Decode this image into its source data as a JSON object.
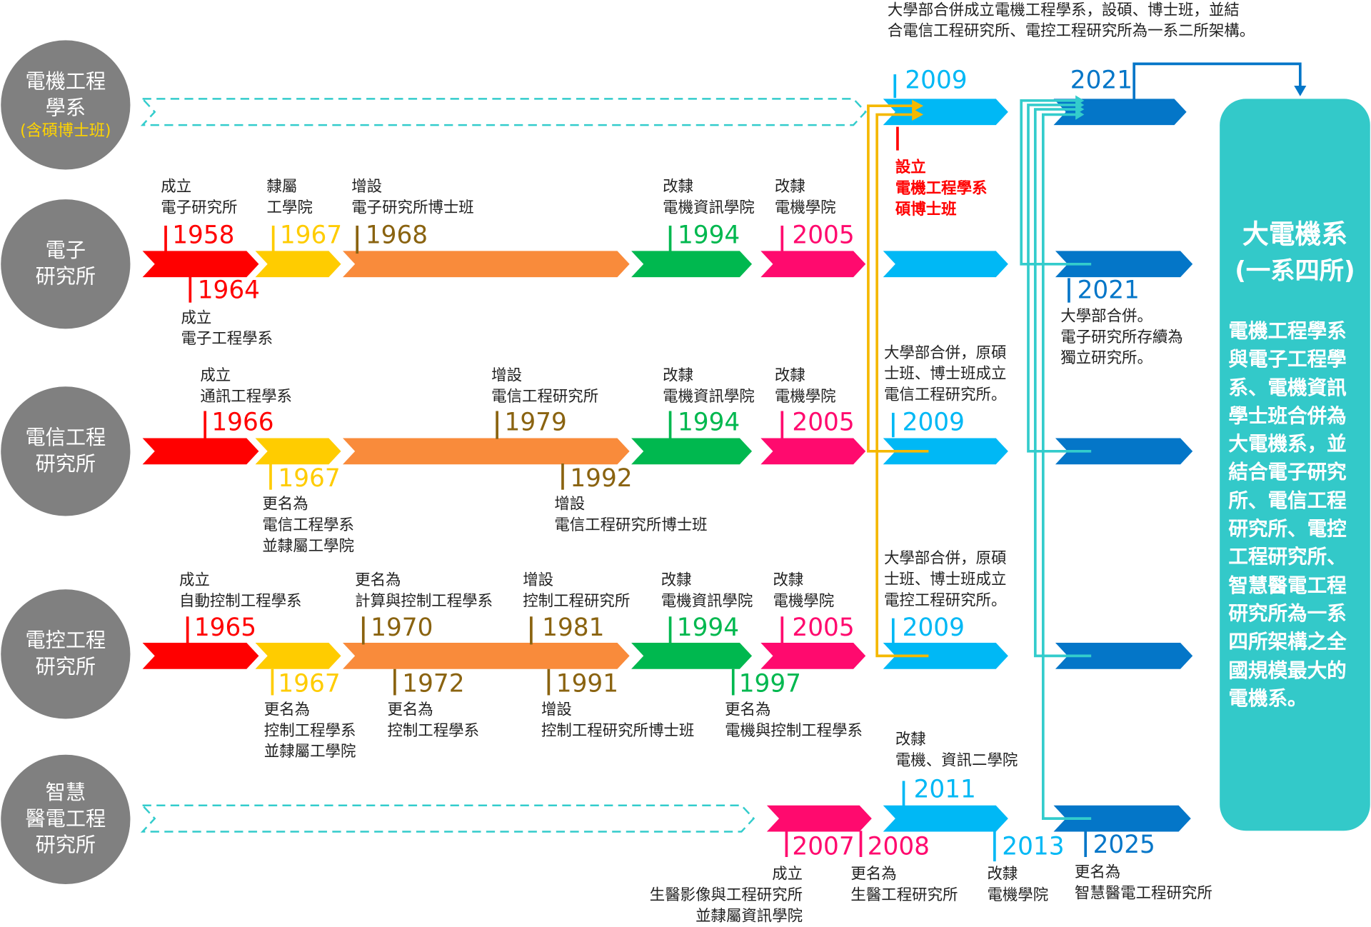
{
  "colors": {
    "red": "#ff0000",
    "yellow": "#ffcc00",
    "orange": "#f98b3b",
    "green": "#00b84f",
    "pink": "#ff0a6e",
    "lightblue": "#00b8f5",
    "darkblue": "#0476c8",
    "olive": "#8a6310",
    "teal": "#33cccc",
    "gold": "#f5b800",
    "grey": "#808080"
  },
  "units": [
    {
      "lines": [
        "電機工程",
        "學系"
      ],
      "sub": "(含碩博士班)"
    },
    {
      "lines": [
        "電子",
        "研究所"
      ]
    },
    {
      "lines": [
        "電信工程",
        "研究所"
      ]
    },
    {
      "lines": [
        "電控工程",
        "研究所"
      ]
    },
    {
      "lines": [
        "智慧",
        "醫電工程",
        "研究所"
      ]
    }
  ],
  "events": [
    {
      "year": "1958",
      "color": "red",
      "text": [
        "成立",
        "電子研究所"
      ]
    },
    {
      "year": "1967",
      "color": "yellow",
      "text": [
        "隸屬",
        "工學院"
      ]
    },
    {
      "year": "1968",
      "color": "olive",
      "text": [
        "增設",
        "電子研究所博士班"
      ]
    },
    {
      "year": "1994",
      "color": "green",
      "text": [
        "改隸",
        "電機資訊學院"
      ]
    },
    {
      "year": "2005",
      "color": "pink",
      "text": [
        "改隸",
        "電機學院"
      ]
    },
    {
      "year": "1964",
      "color": "red",
      "text": [
        "成立",
        "電子工程學系"
      ]
    },
    {
      "year": "1966",
      "color": "red",
      "text": [
        "成立",
        "通訊工程學系"
      ]
    },
    {
      "year": "1979",
      "color": "olive",
      "text": [
        "增設",
        "電信工程研究所"
      ]
    },
    {
      "year": "1994",
      "color": "green",
      "text": [
        "改隸",
        "電機資訊學院"
      ]
    },
    {
      "year": "2005",
      "color": "pink",
      "text": [
        "改隸",
        "電機學院"
      ]
    },
    {
      "year": "1967",
      "color": "yellow",
      "text": [
        "更名為",
        "電信工程學系",
        "並隸屬工學院"
      ]
    },
    {
      "year": "1992",
      "color": "olive",
      "text": [
        "增設",
        "電信工程研究所博士班"
      ]
    },
    {
      "year": "1965",
      "color": "red",
      "text": [
        "成立",
        "自動控制工程學系"
      ]
    },
    {
      "year": "1970",
      "color": "olive",
      "text": [
        "更名為",
        "計算與控制工程學系"
      ]
    },
    {
      "year": "1981",
      "color": "olive",
      "text": [
        "增設",
        "控制工程研究所"
      ]
    },
    {
      "year": "1994",
      "color": "green",
      "text": [
        "改隸",
        "電機資訊學院"
      ]
    },
    {
      "year": "2005",
      "color": "pink",
      "text": [
        "改隸",
        "電機學院"
      ]
    },
    {
      "year": "1967",
      "color": "yellow",
      "text": [
        "更名為",
        "控制工程學系",
        "並隸屬工學院"
      ]
    },
    {
      "year": "1972",
      "color": "olive",
      "text": [
        "更名為",
        "控制工程學系"
      ]
    },
    {
      "year": "1991",
      "color": "olive",
      "text": [
        "增設",
        "控制工程研究所博士班"
      ]
    },
    {
      "year": "1997",
      "color": "green",
      "text": [
        "更名為",
        "電機與控制工程學系"
      ]
    },
    {
      "year": "2011",
      "color": "lightblue",
      "text": [
        "改隸",
        "電機、資訊二學院"
      ]
    },
    {
      "year": "2007",
      "color": "pink",
      "text": [
        "成立",
        "生醫影像與工程研究所",
        "並隸屬資訊學院"
      ]
    },
    {
      "year": "2008",
      "color": "pink",
      "text": [
        "更名為",
        "生醫工程研究所"
      ]
    },
    {
      "year": "2013",
      "color": "lightblue",
      "text": [
        "改隸",
        "電機學院"
      ]
    },
    {
      "year": "2025",
      "color": "darkblue",
      "text": [
        "更名為",
        "智慧醫電工程研究所"
      ]
    },
    {
      "year": "2009",
      "color": "lightblue",
      "text": [
        "大學部合併成立電機工程學系，設碩、博士班，並結",
        "合電信工程研究所、電控工程研究所為一系二所架構。"
      ]
    },
    {
      "year": "2021",
      "color": "darkblue",
      "text": []
    },
    {
      "year": "",
      "color": "red",
      "text": [
        "設立",
        "電機工程學系",
        "碩博士班"
      ]
    },
    {
      "year": "2021",
      "color": "darkblue",
      "text": [
        "大學部合併。",
        "電子研究所存續為",
        "獨立研究所。"
      ]
    },
    {
      "year": "2009",
      "color": "lightblue",
      "text": [
        "大學部合併，原碩",
        "士班、博士班成立",
        "電信工程研究所。"
      ]
    },
    {
      "year": "2009",
      "color": "lightblue",
      "text": [
        "大學部合併，原碩",
        "士班、博士班成立",
        "電控工程研究所。"
      ]
    }
  ],
  "summary": {
    "title": "大電機系",
    "subtitle": "(一系四所)",
    "body": "電機工程學系與電子工程學系、電機資訊學士班合併為大電機系，並結合電子研究所、電信工程研究所、電控工程研究所、智慧醫電工程研究所為一系四所架構之全國規模最大的電機系。"
  }
}
